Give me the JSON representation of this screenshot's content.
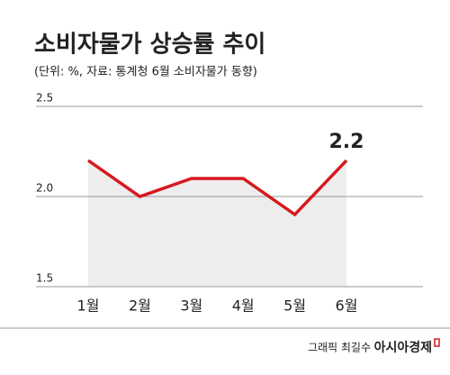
{
  "chart_data": {
    "type": "line",
    "title": "소비자물가 상승률 추이",
    "subtitle": "(단위: %, 자료: 통계청 6월 소비자물가 동향)",
    "categories": [
      "1월",
      "2월",
      "3월",
      "4월",
      "5월",
      "6월"
    ],
    "values": [
      2.2,
      2.0,
      2.1,
      2.1,
      1.9,
      2.2
    ],
    "color": "#d7191f",
    "area_color": "#ededed",
    "ylim": [
      1.5,
      2.5
    ],
    "yticks": [
      1.5,
      {
        "value": 2,
        "label": "2.0"
      },
      2.5
    ],
    "grid": true,
    "credit": "그래픽 최길수",
    "brand": "아시아경제"
  }
}
